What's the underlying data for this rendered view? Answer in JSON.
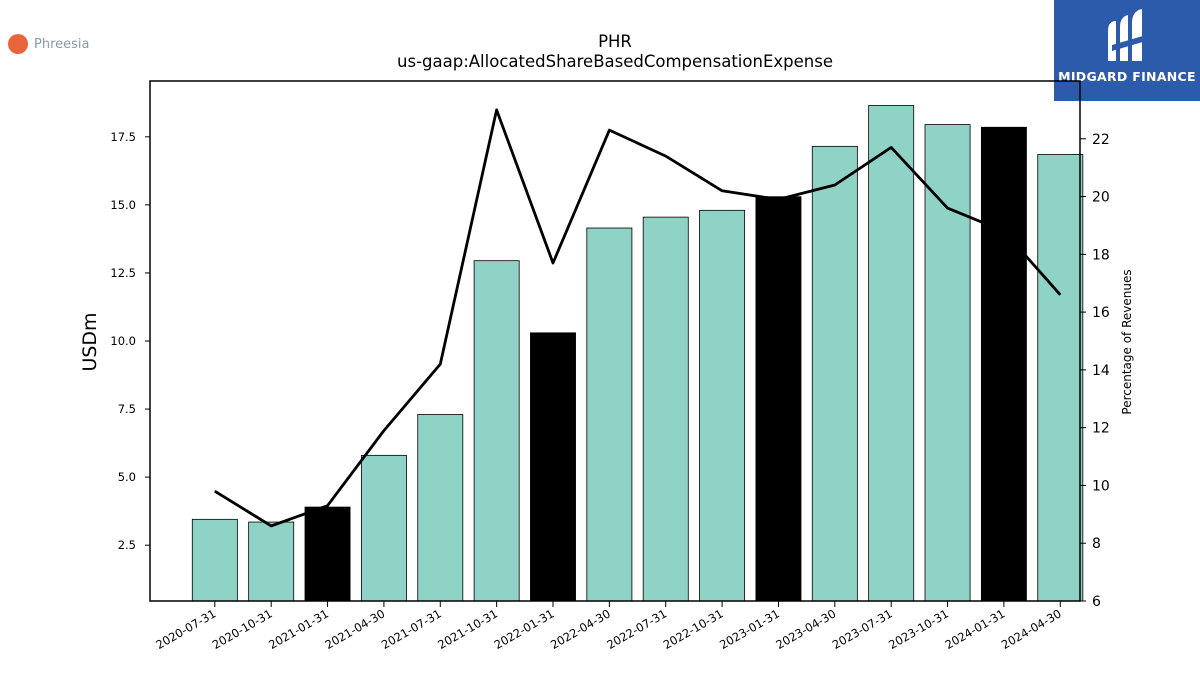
{
  "branding": {
    "company_logo_text": "Phreesia",
    "company_logo_color": "#e8643a",
    "publisher_logo_text": "MIDGARD FINANCE",
    "publisher_logo_bg": "#2d5bab"
  },
  "chart_data": {
    "type": "bar",
    "title": "PHR",
    "subtitle": "us-gaap:AllocatedShareBasedCompensationExpense",
    "ylabel": "USDm",
    "y2label": "Percentage of Revenues",
    "categories": [
      "2020-07-31",
      "2020-10-31",
      "2021-01-31",
      "2021-04-30",
      "2021-07-31",
      "2021-10-31",
      "2022-01-31",
      "2022-04-30",
      "2022-07-31",
      "2022-10-31",
      "2023-01-31",
      "2023-04-30",
      "2023-07-31",
      "2023-10-31",
      "2024-01-31",
      "2024-04-30"
    ],
    "series": [
      {
        "type": "bar",
        "axis": "left",
        "values": [
          3.45,
          3.35,
          3.9,
          5.8,
          7.3,
          12.95,
          10.3,
          14.15,
          14.55,
          14.8,
          15.3,
          17.15,
          18.65,
          17.95,
          17.85,
          16.85
        ],
        "colors": [
          "#8fd3c6",
          "#8fd3c6",
          "#000000",
          "#8fd3c6",
          "#8fd3c6",
          "#8fd3c6",
          "#000000",
          "#8fd3c6",
          "#8fd3c6",
          "#8fd3c6",
          "#000000",
          "#8fd3c6",
          "#8fd3c6",
          "#8fd3c6",
          "#000000",
          "#8fd3c6"
        ]
      },
      {
        "type": "line",
        "axis": "right",
        "color": "#000000",
        "values": [
          9.8,
          8.6,
          9.3,
          11.9,
          14.2,
          23.0,
          17.7,
          22.3,
          21.4,
          20.2,
          19.9,
          20.4,
          21.7,
          19.6,
          18.8,
          16.6
        ]
      }
    ],
    "ylim": [
      0.45,
      19.55
    ],
    "yticks": [
      2.5,
      5.0,
      7.5,
      10.0,
      12.5,
      15.0,
      17.5
    ],
    "ytick_labels": [
      "2.5",
      "5.0",
      "7.5",
      "10.0",
      "12.5",
      "15.0",
      "17.5"
    ],
    "y2lim": [
      6,
      24
    ],
    "y2ticks": [
      6,
      8,
      10,
      12,
      14,
      16,
      18,
      20,
      22
    ],
    "y2tick_labels": [
      "6",
      "8",
      "10",
      "12",
      "14",
      "16",
      "18",
      "20",
      "22"
    ],
    "grid": false,
    "legend": "none"
  }
}
